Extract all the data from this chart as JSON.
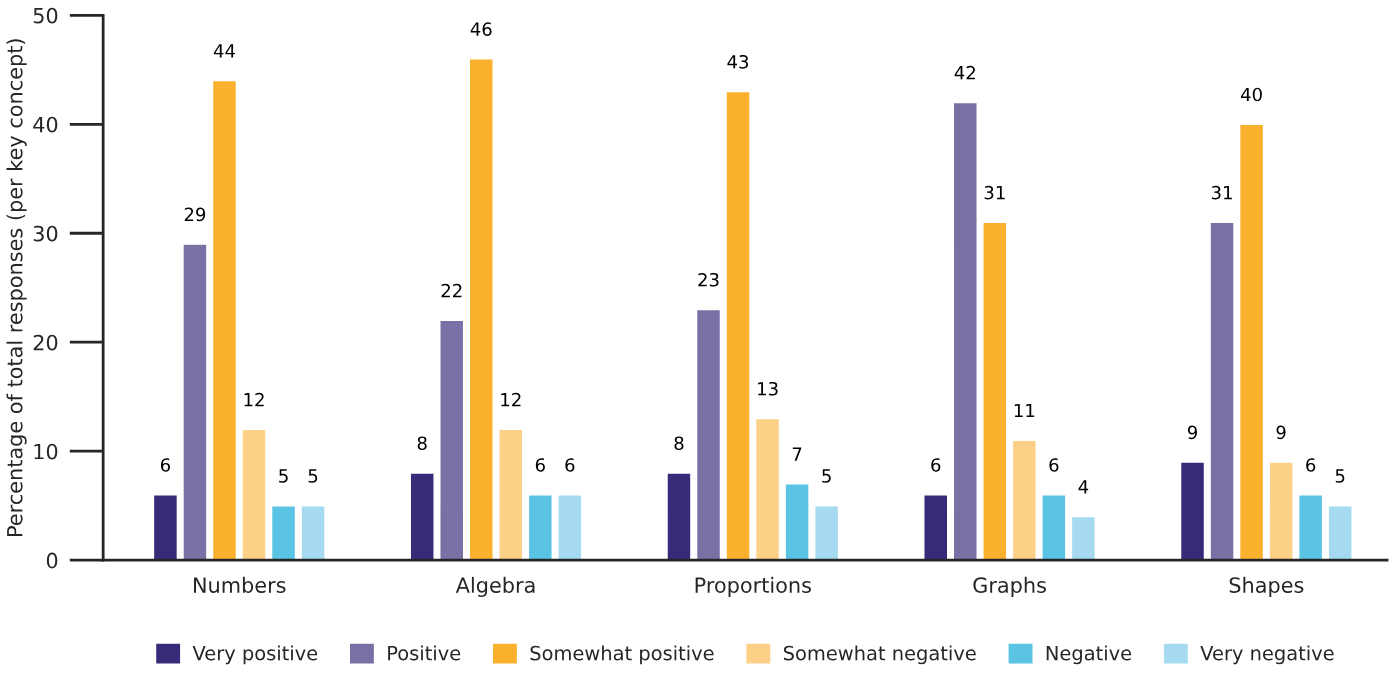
{
  "chart_data": {
    "type": "bar",
    "ylabel": "Percentage of total responses (per key concept)",
    "categories": [
      "Numbers",
      "Algebra",
      "Proportions",
      "Graphs",
      "Shapes"
    ],
    "series": [
      {
        "name": "Very positive",
        "color": "#372b79",
        "values": [
          6,
          8,
          8,
          6,
          9
        ]
      },
      {
        "name": "Positive",
        "color": "#7a70a6",
        "values": [
          29,
          22,
          23,
          42,
          31
        ]
      },
      {
        "name": "Somewhat positive",
        "color": "#fbb02e",
        "values": [
          44,
          46,
          43,
          31,
          40
        ]
      },
      {
        "name": "Somewhat negative",
        "color": "#fdd088",
        "values": [
          12,
          12,
          13,
          11,
          9
        ]
      },
      {
        "name": "Negative",
        "color": "#5bc3e4",
        "values": [
          5,
          6,
          7,
          6,
          6
        ]
      },
      {
        "name": "Very negative",
        "color": "#a6daf0",
        "values": [
          5,
          6,
          5,
          4,
          5
        ]
      }
    ],
    "ylim": [
      0,
      50
    ],
    "yticks": [
      0,
      10,
      20,
      30,
      40,
      50
    ],
    "grid": false,
    "legend": "bottom",
    "data_labels": true
  }
}
